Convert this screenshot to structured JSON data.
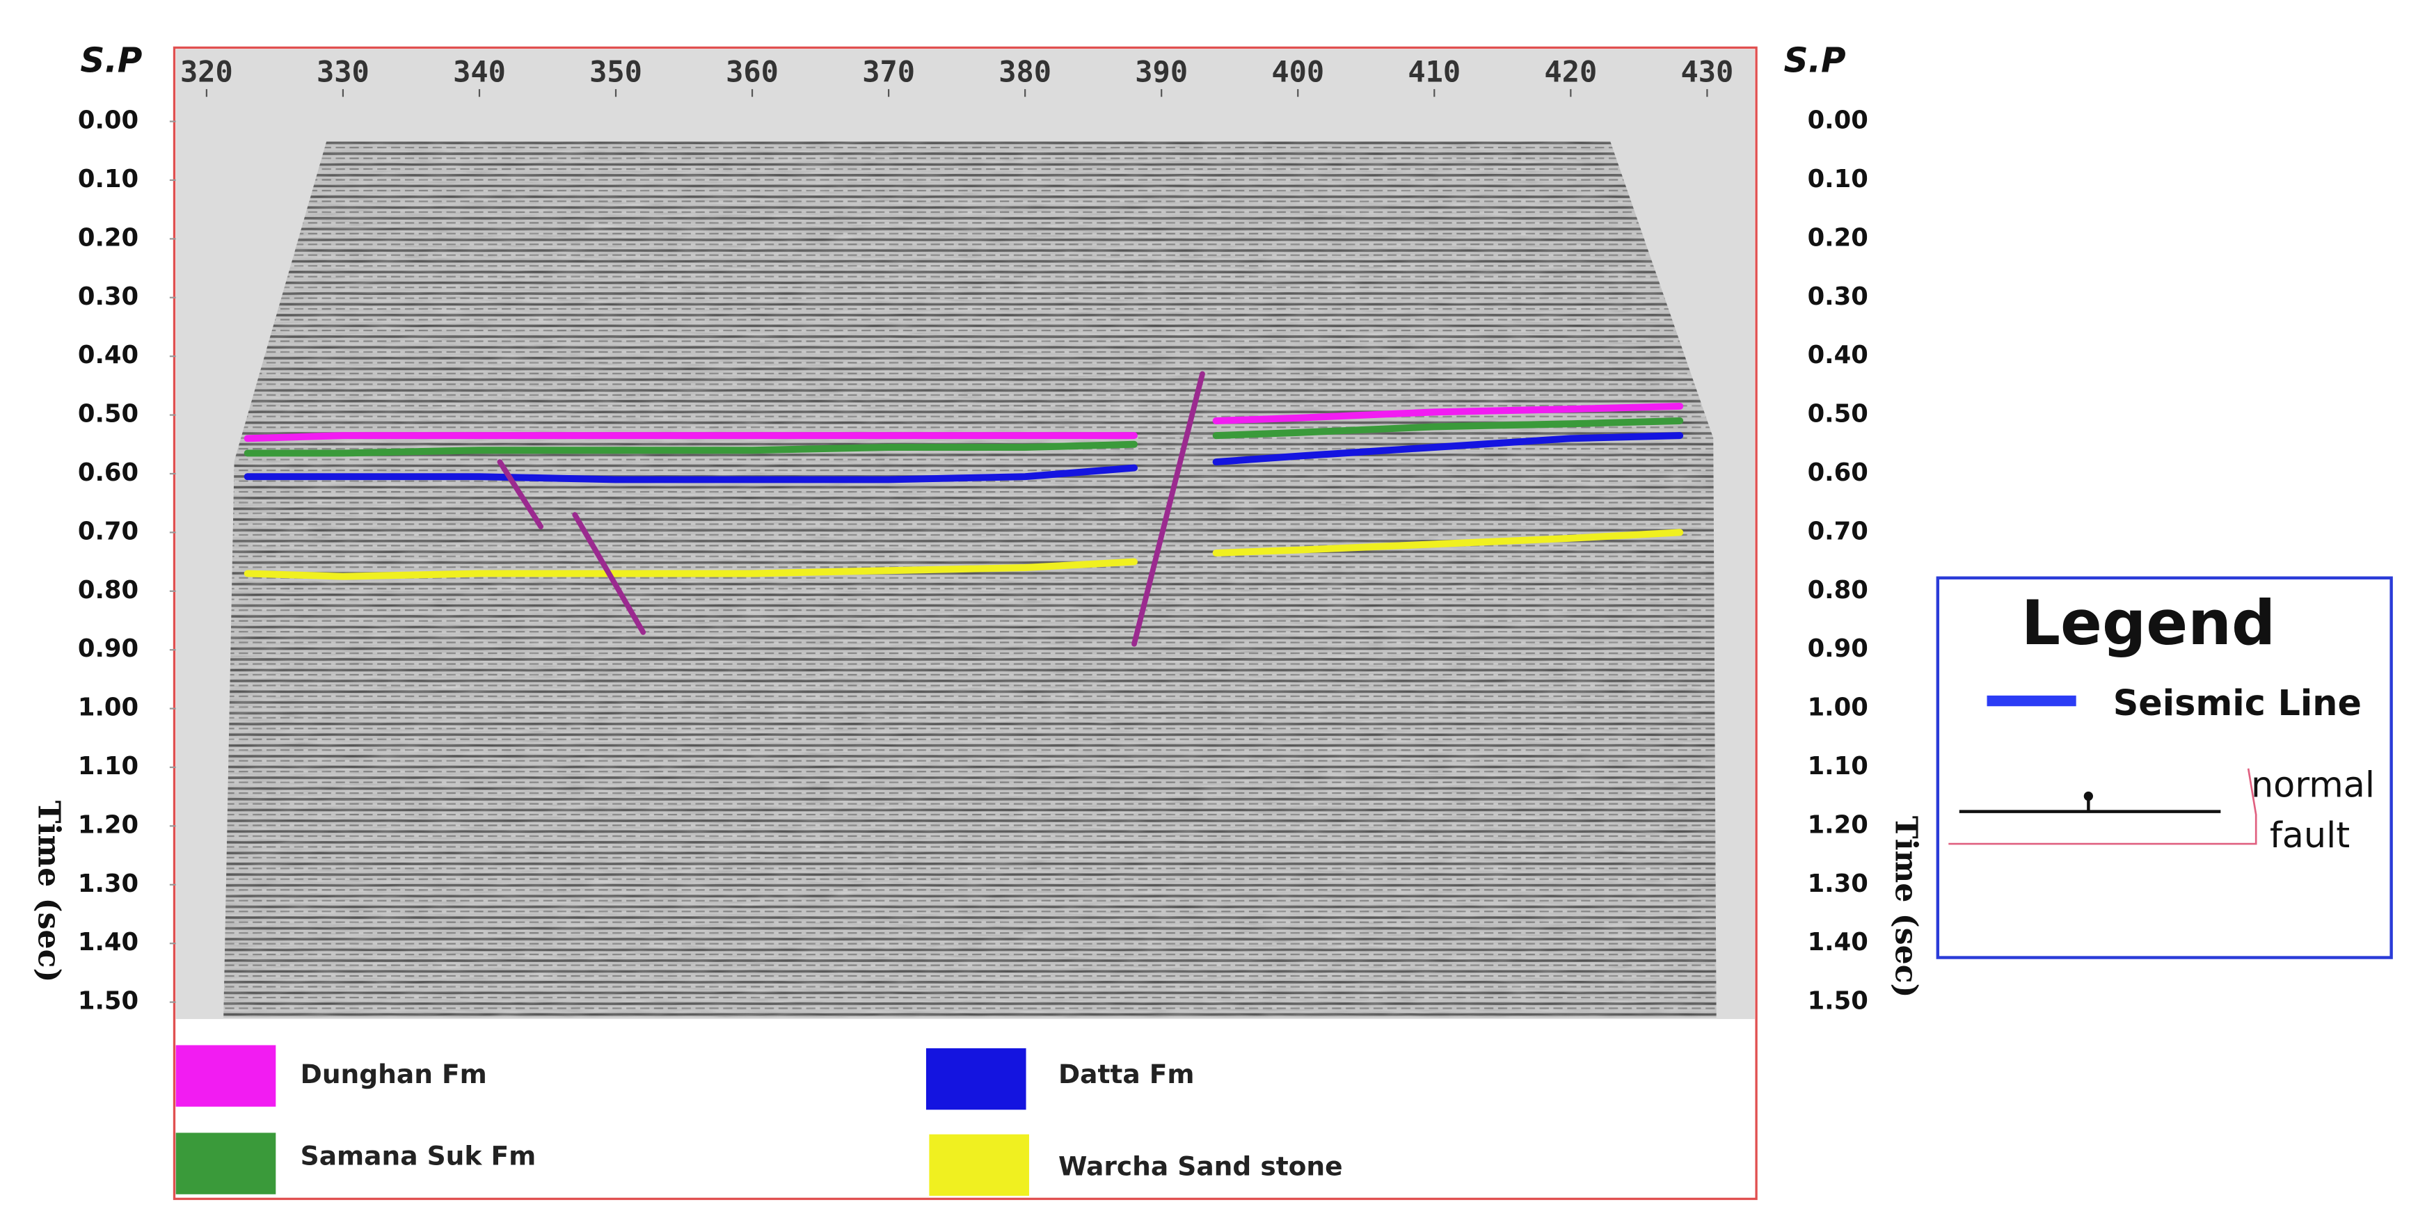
{
  "chart_data": {
    "type": "line",
    "x_label": "S.P",
    "y_label": "Time (sec)",
    "x": [
      323,
      330,
      340,
      350,
      360,
      370,
      380,
      388,
      391,
      394,
      400,
      410,
      420,
      428
    ],
    "xlim": [
      320,
      430
    ],
    "xticks": [
      320,
      330,
      340,
      350,
      360,
      370,
      380,
      390,
      400,
      410,
      420,
      430
    ],
    "ylim": [
      0,
      1.5
    ],
    "yticks": [
      {
        "value": 0,
        "label": "0.00"
      },
      {
        "value": 0.1,
        "label": "0.10"
      },
      {
        "value": 0.2,
        "label": "0.20"
      },
      {
        "value": 0.3,
        "label": "0.30"
      },
      {
        "value": 0.4,
        "label": "0.40"
      },
      {
        "value": 0.5,
        "label": "0.50"
      },
      {
        "value": 0.6,
        "label": "0.60"
      },
      {
        "value": 0.7,
        "label": "0.70"
      },
      {
        "value": 0.8,
        "label": "0.80"
      },
      {
        "value": 0.9,
        "label": "0.90"
      },
      {
        "value": 1,
        "label": "1.00"
      },
      {
        "value": 1.1,
        "label": "1.10"
      },
      {
        "value": 1.2,
        "label": "1.20"
      },
      {
        "value": 1.3,
        "label": "1.30"
      },
      {
        "value": 1.4,
        "label": "1.40"
      },
      {
        "value": 1.5,
        "label": "1.50"
      }
    ],
    "series": [
      {
        "name": "Dunghan Fm",
        "color": "#f21cf2",
        "values": [
          0.54,
          0.535,
          0.535,
          0.535,
          0.535,
          0.535,
          0.535,
          0.535,
          null,
          0.51,
          0.505,
          0.495,
          0.49,
          0.485
        ]
      },
      {
        "name": "Samana Suk Fm",
        "color": "#3a9a3a",
        "values": [
          0.565,
          0.565,
          0.56,
          0.56,
          0.56,
          0.555,
          0.555,
          0.55,
          null,
          0.535,
          0.53,
          0.52,
          0.515,
          0.51
        ]
      },
      {
        "name": "Datta Fm",
        "color": "#1414e0",
        "values": [
          0.605,
          0.605,
          0.605,
          0.61,
          0.61,
          0.61,
          0.605,
          0.59,
          null,
          0.58,
          0.57,
          0.555,
          0.54,
          0.535
        ]
      },
      {
        "name": "Warcha Sand stone",
        "color": "#f0f020",
        "values": [
          0.77,
          0.775,
          0.77,
          0.77,
          0.77,
          0.765,
          0.76,
          0.75,
          null,
          0.735,
          0.73,
          0.72,
          0.71,
          0.7
        ]
      }
    ],
    "faults": {
      "color": "#9b2a8f",
      "lines": [
        {
          "x": [
            341.5,
            344.5
          ],
          "y": [
            0.58,
            0.69
          ]
        },
        {
          "x": [
            347,
            352
          ],
          "y": [
            0.67,
            0.87
          ]
        },
        {
          "x": [
            393,
            388
          ],
          "y": [
            0.43,
            0.89
          ]
        }
      ]
    }
  },
  "side_legend": {
    "title": "Legend",
    "seismic_line": "Seismic Line",
    "seismic_line_color": "#2b3cf5",
    "normal_fault": [
      "normal",
      "fault"
    ]
  }
}
